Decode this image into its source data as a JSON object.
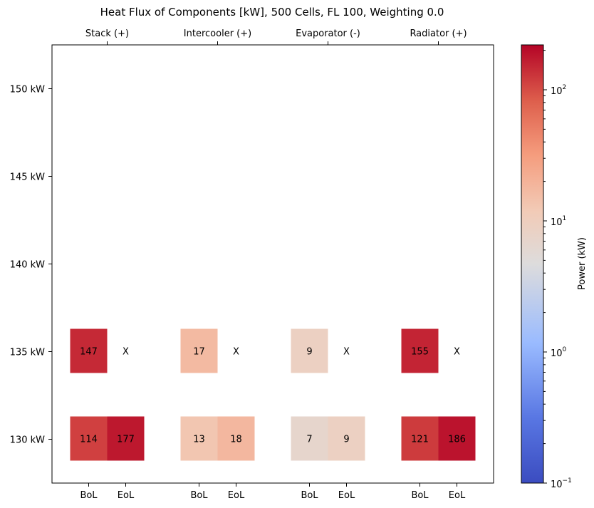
{
  "chart_data": {
    "type": "heatmap",
    "title": "Heat Flux of Components [kW], 500 Cells, FL 100, Weighting 0.0",
    "top_categories": [
      "Stack (+)",
      "Intercooler (+)",
      "Evaporator (-)",
      "Radiator (+)"
    ],
    "x_categories": [
      "BoL",
      "EoL",
      "BoL",
      "EoL",
      "BoL",
      "EoL",
      "BoL",
      "EoL"
    ],
    "y_ticks": [
      "150 kW",
      "145 kW",
      "140 kW",
      "135 kW",
      "130 kW"
    ],
    "y_values": [
      150,
      145,
      140,
      135,
      130
    ],
    "ylim": [
      127.5,
      152.5
    ],
    "cells": [
      {
        "component": "Stack (+)",
        "stage": "BoL",
        "y": 135,
        "value": 147,
        "label": "147"
      },
      {
        "component": "Stack (+)",
        "stage": "EoL",
        "y": 135,
        "value": null,
        "label": "X"
      },
      {
        "component": "Intercooler (+)",
        "stage": "BoL",
        "y": 135,
        "value": 17,
        "label": "17"
      },
      {
        "component": "Intercooler (+)",
        "stage": "EoL",
        "y": 135,
        "value": null,
        "label": "X"
      },
      {
        "component": "Evaporator (-)",
        "stage": "BoL",
        "y": 135,
        "value": 9,
        "label": "9"
      },
      {
        "component": "Evaporator (-)",
        "stage": "EoL",
        "y": 135,
        "value": null,
        "label": "X"
      },
      {
        "component": "Radiator (+)",
        "stage": "BoL",
        "y": 135,
        "value": 155,
        "label": "155"
      },
      {
        "component": "Radiator (+)",
        "stage": "EoL",
        "y": 135,
        "value": null,
        "label": "X"
      },
      {
        "component": "Stack (+)",
        "stage": "BoL",
        "y": 130,
        "value": 114,
        "label": "114"
      },
      {
        "component": "Stack (+)",
        "stage": "EoL",
        "y": 130,
        "value": 177,
        "label": "177"
      },
      {
        "component": "Intercooler (+)",
        "stage": "BoL",
        "y": 130,
        "value": 13,
        "label": "13"
      },
      {
        "component": "Intercooler (+)",
        "stage": "EoL",
        "y": 130,
        "value": 18,
        "label": "18"
      },
      {
        "component": "Evaporator (-)",
        "stage": "BoL",
        "y": 130,
        "value": 7,
        "label": "7"
      },
      {
        "component": "Evaporator (-)",
        "stage": "EoL",
        "y": 130,
        "value": 9,
        "label": "9"
      },
      {
        "component": "Radiator (+)",
        "stage": "BoL",
        "y": 130,
        "value": 121,
        "label": "121"
      },
      {
        "component": "Radiator (+)",
        "stage": "EoL",
        "y": 130,
        "value": 186,
        "label": "186"
      }
    ],
    "colorbar": {
      "label": "Power (kW)",
      "scale": "log",
      "range": [
        0.1,
        220
      ],
      "ticks": [
        {
          "value": 0.1,
          "base": "10",
          "exp": "−1"
        },
        {
          "value": 1,
          "base": "10",
          "exp": "0"
        },
        {
          "value": 10,
          "base": "10",
          "exp": "1"
        },
        {
          "value": 100,
          "base": "10",
          "exp": "2"
        }
      ],
      "colormap": "coolwarm"
    },
    "grid": false
  }
}
